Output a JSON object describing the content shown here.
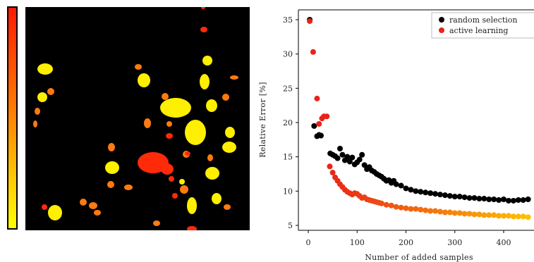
{
  "colors": {
    "random_selection": "#000000",
    "active_learning": "#e8231a",
    "active_learning_tail": "#ffc000",
    "blob_red": "#ff2a0a",
    "blob_orange": "#ff7a10",
    "blob_yellow": "#ffef00",
    "segmentation_background": "#000000"
  },
  "colorbar": {
    "gradient_top": "#ff1a00",
    "gradient_bottom": "#ffff00"
  },
  "segmentation_map": {
    "description_icon": "segmentation-mask-image"
  },
  "chart_data": {
    "type": "scatter",
    "xlabel": "Number of added samples",
    "ylabel": "Relative Error [%]",
    "xlim": [
      -10,
      460
    ],
    "ylim": [
      4.5,
      36.5
    ],
    "xticks": [
      0,
      100,
      200,
      300,
      400
    ],
    "yticks": [
      5,
      10,
      15,
      20,
      25,
      30,
      35
    ],
    "grid": false,
    "legend_placement": "top-right",
    "series": [
      {
        "name": "random selection",
        "x": [
          3,
          12,
          18,
          22,
          26,
          45,
          50,
          55,
          60,
          65,
          70,
          75,
          80,
          85,
          90,
          95,
          100,
          105,
          110,
          115,
          120,
          125,
          130,
          135,
          140,
          145,
          150,
          155,
          160,
          165,
          170,
          175,
          180,
          190,
          200,
          210,
          220,
          230,
          240,
          250,
          260,
          270,
          280,
          290,
          300,
          310,
          320,
          330,
          340,
          350,
          360,
          370,
          380,
          390,
          400,
          410,
          420,
          430,
          440,
          450
        ],
        "y": [
          35,
          19.5,
          18,
          18.2,
          18.1,
          15.5,
          15.3,
          15.1,
          14.8,
          16.2,
          15.3,
          14.5,
          15.0,
          14.3,
          14.9,
          13.9,
          14.2,
          14.6,
          15.3,
          13.8,
          13.2,
          13.5,
          13.0,
          12.8,
          12.5,
          12.3,
          12.1,
          11.8,
          11.5,
          11.6,
          11.2,
          11.5,
          11.0,
          10.8,
          10.4,
          10.2,
          10.0,
          9.9,
          9.8,
          9.7,
          9.6,
          9.5,
          9.4,
          9.3,
          9.2,
          9.2,
          9.1,
          9.0,
          9.0,
          8.9,
          8.9,
          8.8,
          8.8,
          8.7,
          8.8,
          8.6,
          8.6,
          8.7,
          8.7,
          8.8
        ]
      },
      {
        "name": "active learning",
        "x": [
          3,
          10,
          18,
          22,
          28,
          32,
          38,
          44,
          50,
          55,
          60,
          65,
          70,
          75,
          80,
          85,
          90,
          95,
          100,
          105,
          110,
          115,
          120,
          125,
          130,
          135,
          140,
          145,
          150,
          160,
          170,
          180,
          190,
          200,
          210,
          220,
          230,
          240,
          250,
          260,
          270,
          280,
          290,
          300,
          310,
          320,
          330,
          340,
          350,
          360,
          370,
          380,
          390,
          400,
          410,
          420,
          430,
          440,
          450
        ],
        "y": [
          34.8,
          30.3,
          23.5,
          19.8,
          20.6,
          20.9,
          20.9,
          13.6,
          12.7,
          12.0,
          11.5,
          11.0,
          10.6,
          10.2,
          9.9,
          9.7,
          9.5,
          9.7,
          9.6,
          9.3,
          9.0,
          9.1,
          8.8,
          8.7,
          8.6,
          8.5,
          8.4,
          8.3,
          8.2,
          8.0,
          7.9,
          7.7,
          7.6,
          7.5,
          7.4,
          7.4,
          7.3,
          7.2,
          7.1,
          7.1,
          7.0,
          6.9,
          6.9,
          6.8,
          6.8,
          6.7,
          6.7,
          6.6,
          6.6,
          6.5,
          6.5,
          6.5,
          6.4,
          6.4,
          6.4,
          6.3,
          6.3,
          6.3,
          6.2
        ]
      }
    ]
  }
}
